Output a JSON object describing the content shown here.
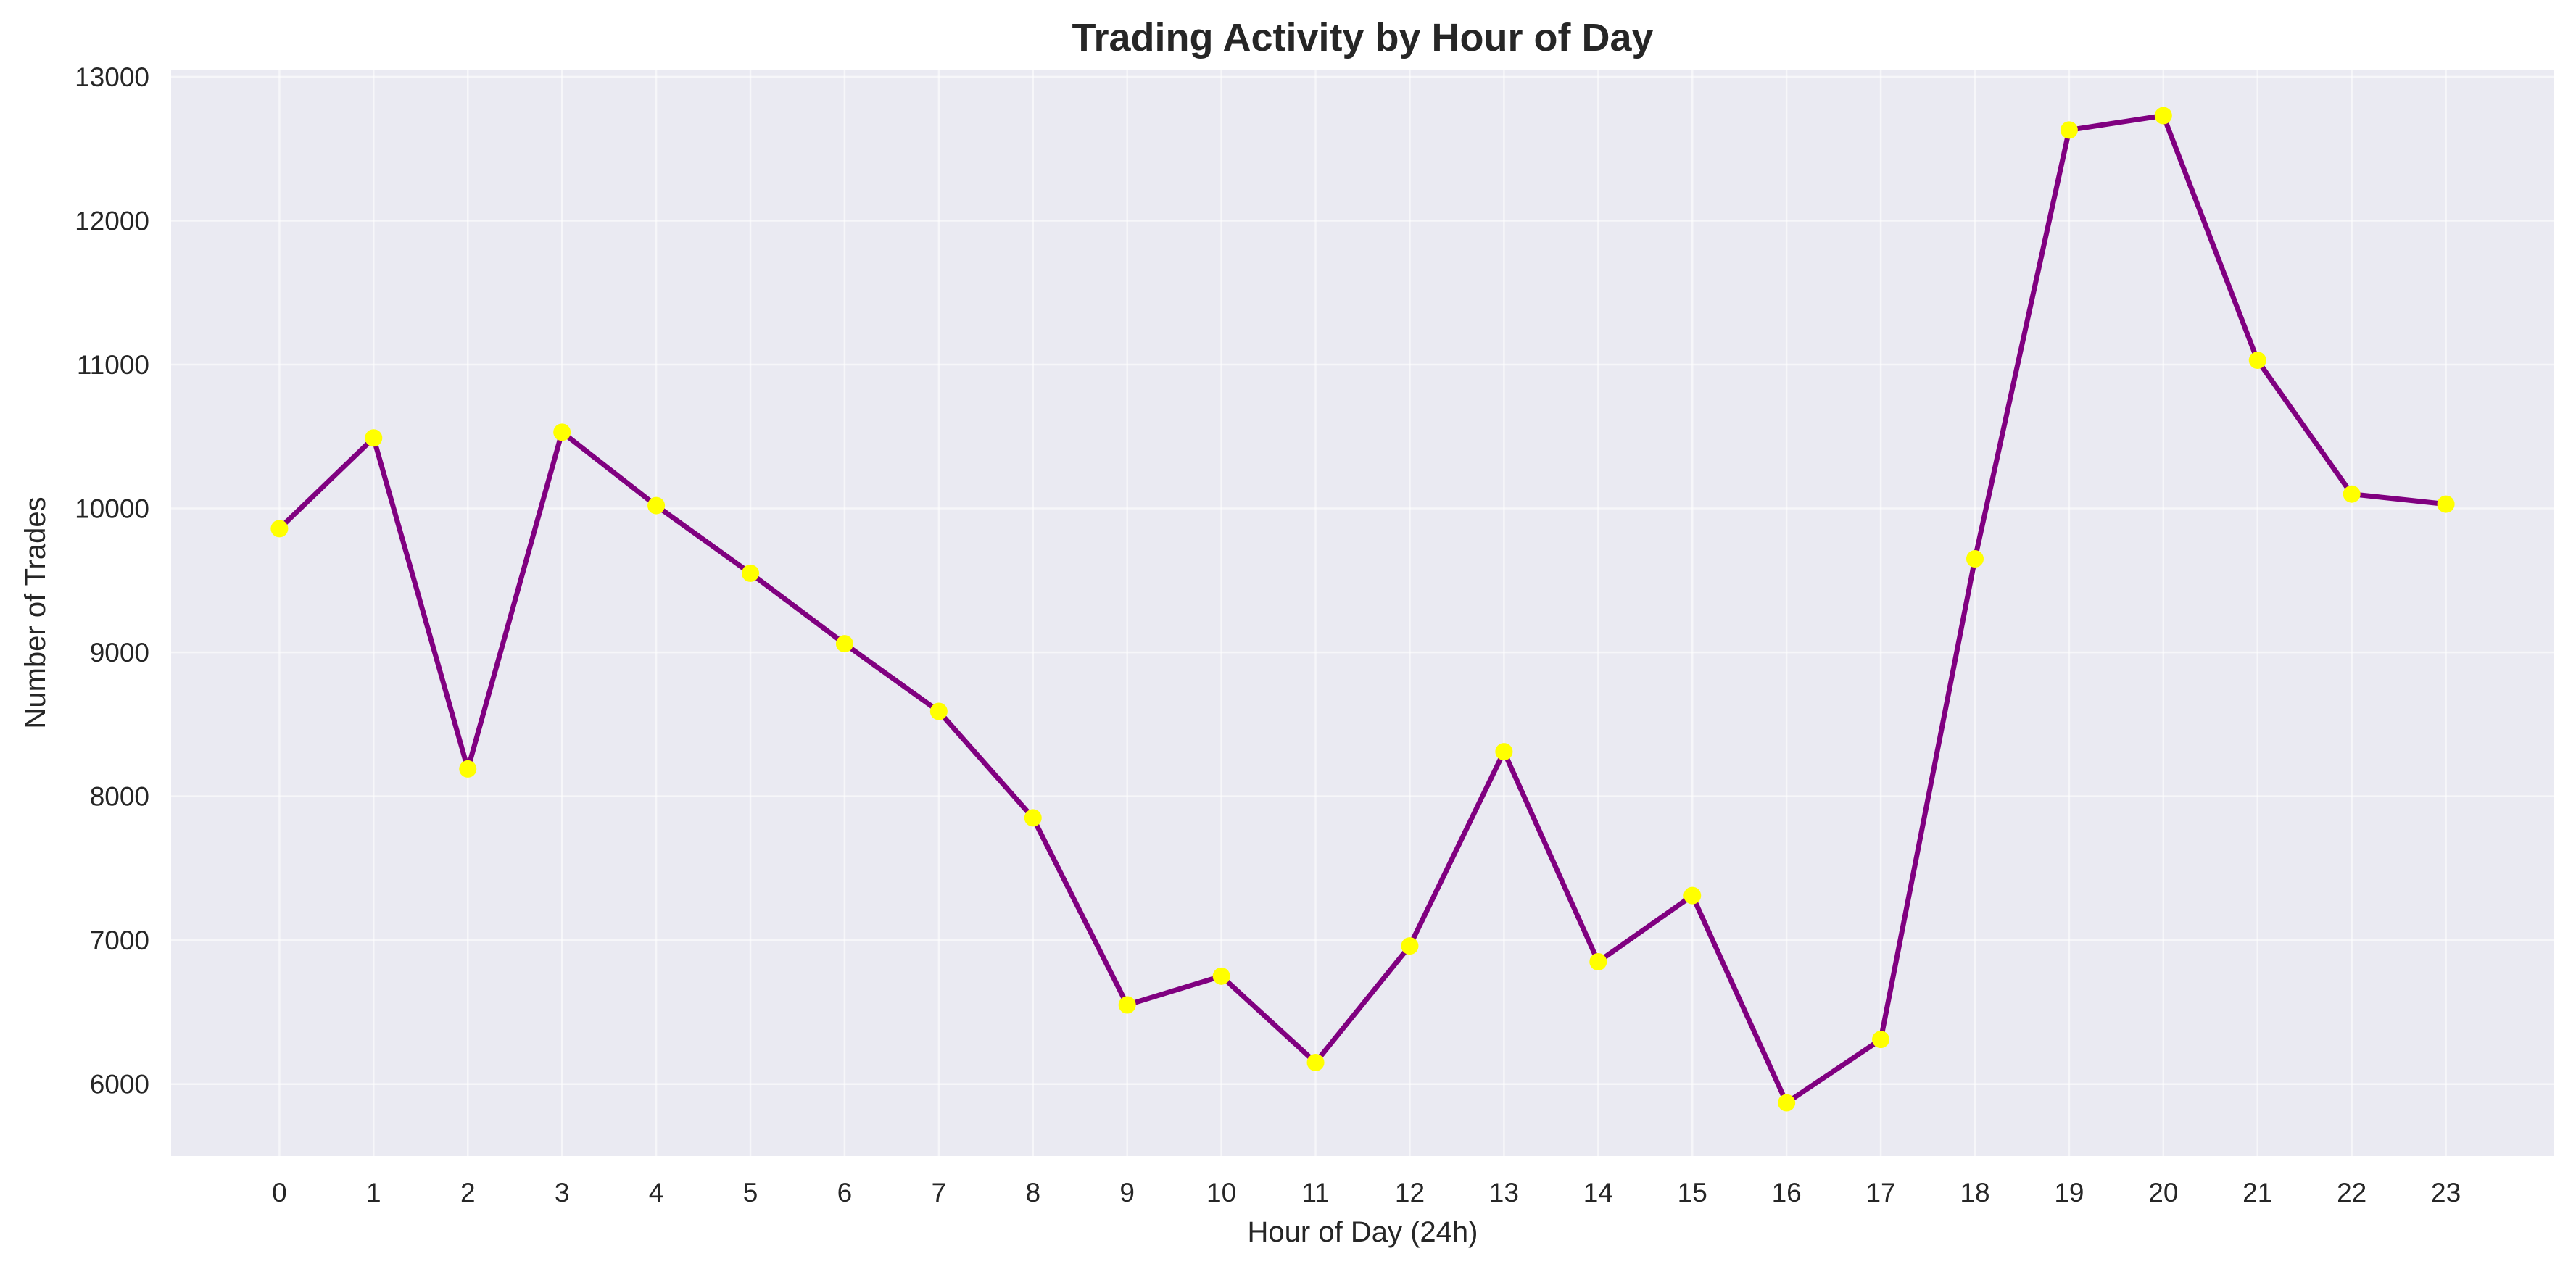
{
  "chart_data": {
    "type": "line",
    "title": "Trading Activity by Hour of Day",
    "xlabel": "Hour of Day (24h)",
    "ylabel": "Number of Trades",
    "x": [
      0,
      1,
      2,
      3,
      4,
      5,
      6,
      7,
      8,
      9,
      10,
      11,
      12,
      13,
      14,
      15,
      16,
      17,
      18,
      19,
      20,
      21,
      22,
      23
    ],
    "x_tick_labels": [
      "0",
      "1",
      "2",
      "3",
      "4",
      "5",
      "6",
      "7",
      "8",
      "9",
      "10",
      "11",
      "12",
      "13",
      "14",
      "15",
      "16",
      "17",
      "18",
      "19",
      "20",
      "21",
      "22",
      "23"
    ],
    "series": [
      {
        "values": [
          9860,
          10490,
          8190,
          10530,
          10020,
          9550,
          9060,
          8590,
          7850,
          6550,
          6750,
          6150,
          6960,
          8310,
          6850,
          7310,
          5870,
          6310,
          9650,
          12630,
          12730,
          11030,
          10100,
          10030
        ],
        "line_color": "#800080",
        "marker_color": "#ffff00"
      }
    ],
    "xlim": [
      -1.15,
      24.15
    ],
    "ylim": [
      5500,
      13050
    ],
    "y_ticks": [
      6000,
      7000,
      8000,
      9000,
      10000,
      11000,
      12000,
      13000
    ],
    "y_tick_labels": [
      "6000",
      "7000",
      "8000",
      "9000",
      "10000",
      "11000",
      "12000",
      "13000"
    ],
    "grid": true,
    "legend": false,
    "background_color": "#eaeaf2"
  }
}
